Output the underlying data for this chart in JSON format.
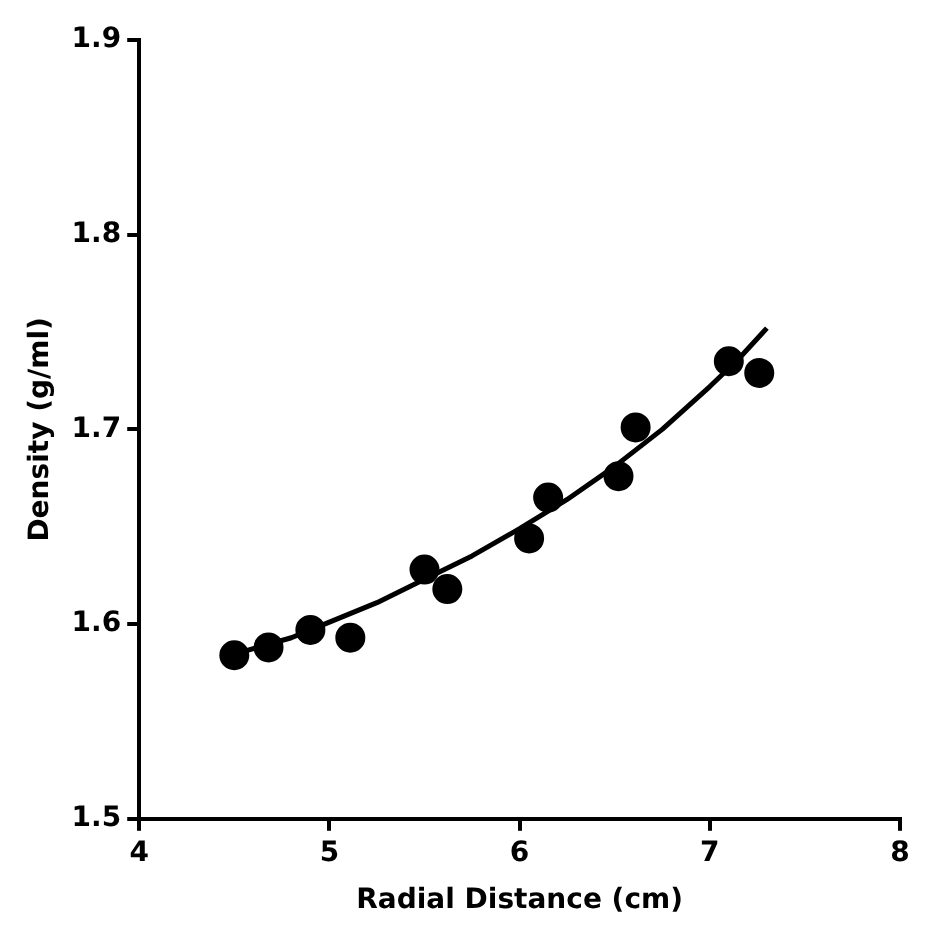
{
  "chart_data": {
    "type": "scatter",
    "xlabel": "Radial Distance (cm)",
    "ylabel": "Density (g/ml)",
    "xlim": [
      4,
      8
    ],
    "xticks": [
      4,
      5,
      6,
      7,
      8
    ],
    "ylim": [
      1.5,
      1.9
    ],
    "yticks": [
      1.5,
      1.6,
      1.7,
      1.8,
      1.9
    ],
    "grid": false,
    "marker": "circle",
    "series": [
      {
        "color": "#000000",
        "x": [
          4.5,
          4.68,
          4.9,
          5.11,
          5.5,
          5.62,
          6.05,
          6.15,
          6.52,
          6.61,
          7.1,
          7.26
        ],
        "values": [
          1.584,
          1.588,
          1.597,
          1.593,
          1.628,
          1.618,
          1.644,
          1.665,
          1.676,
          1.701,
          1.735,
          1.729
        ]
      },
      {
        "type": "line",
        "color": "#000000",
        "marker": "none",
        "line_style": "solid",
        "x": [
          4.55,
          4.8,
          5.0,
          5.25,
          5.5,
          5.75,
          6.0,
          6.25,
          6.5,
          6.75,
          7.0,
          7.15,
          7.3
        ],
        "values": [
          1.586,
          1.593,
          1.601,
          1.611,
          1.623,
          1.635,
          1.649,
          1.664,
          1.681,
          1.7,
          1.722,
          1.736,
          1.752
        ]
      }
    ]
  }
}
